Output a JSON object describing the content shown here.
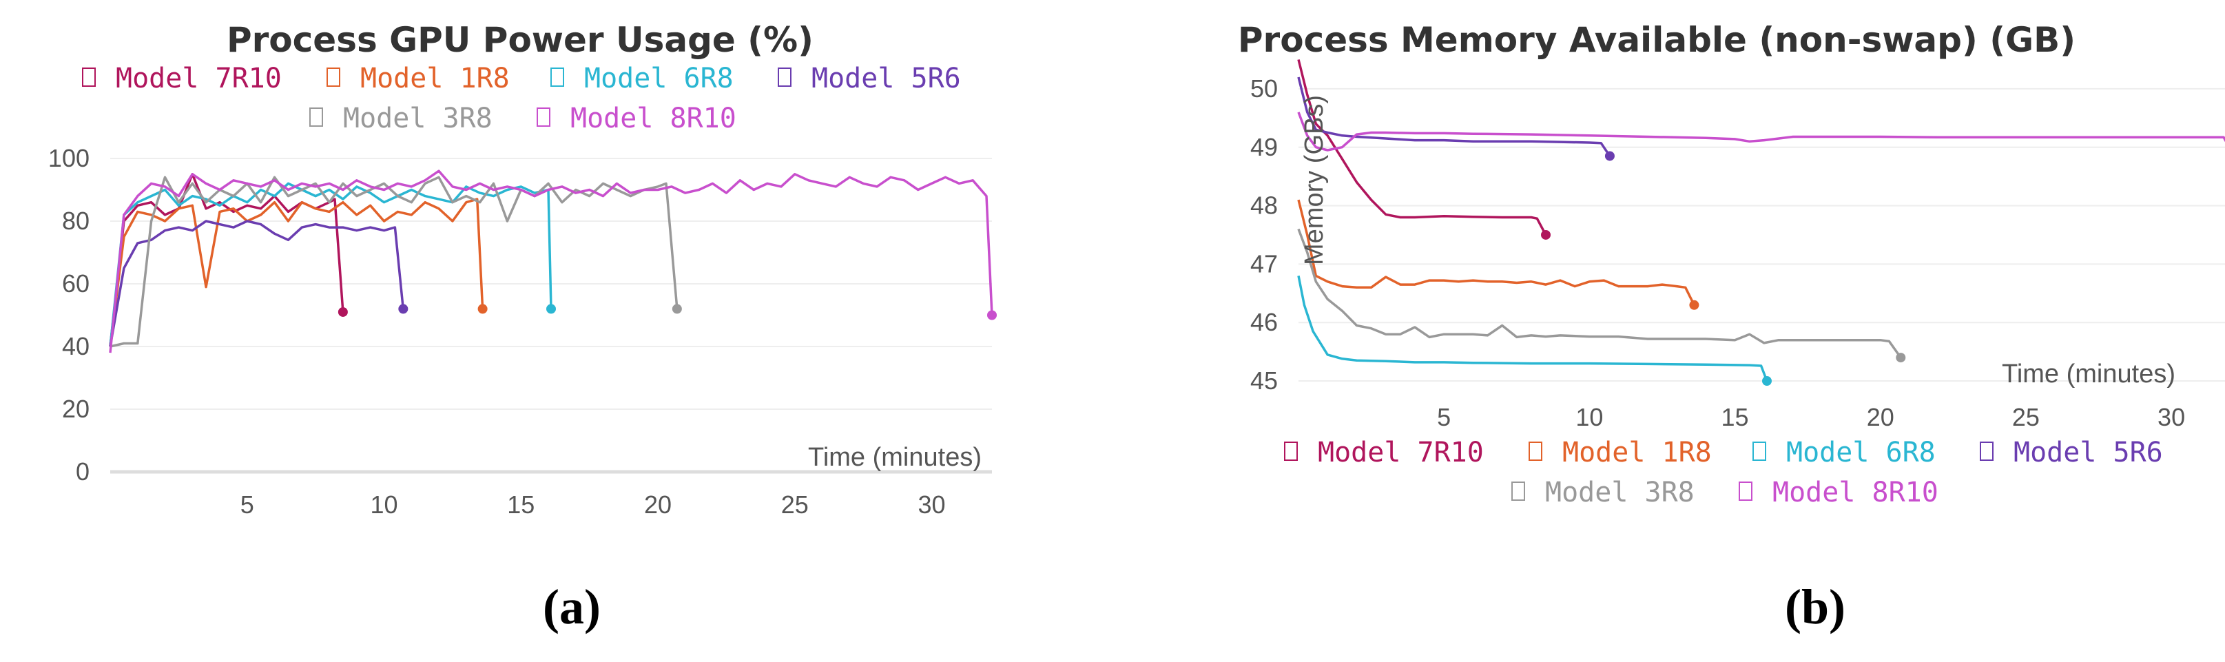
{
  "sublabels": [
    "(a)",
    "(b)"
  ],
  "chart_data": [
    {
      "type": "line",
      "title": "Process GPU Power Usage (%)",
      "xlabel": "Time (minutes)",
      "ylabel": "",
      "xlim": [
        0,
        32.2
      ],
      "ylim": [
        0,
        100
      ],
      "xticks": [
        5,
        10,
        15,
        20,
        25,
        30
      ],
      "yticks": [
        0,
        20,
        40,
        60,
        80,
        100
      ],
      "legend_position": "top",
      "series": [
        {
          "name": "Model 7R10",
          "color": "#b0155c",
          "x": [
            0,
            0.5,
            1,
            1.5,
            2,
            2.5,
            3,
            3.5,
            4,
            4.5,
            5,
            5.5,
            6,
            6.5,
            7,
            7.5,
            8,
            8.2,
            8.5
          ],
          "y": [
            40,
            80,
            85,
            86,
            82,
            84,
            95,
            84,
            86,
            83,
            85,
            84,
            88,
            83,
            86,
            84,
            86,
            87,
            51
          ]
        },
        {
          "name": "Model 1R8",
          "color": "#e2622a",
          "x": [
            0,
            0.5,
            1,
            1.5,
            2,
            2.5,
            3,
            3.5,
            4,
            4.5,
            5,
            5.5,
            6,
            6.5,
            7,
            7.5,
            8,
            8.5,
            9,
            9.5,
            10,
            10.5,
            11,
            11.5,
            12,
            12.5,
            13,
            13.4,
            13.6
          ],
          "y": [
            40,
            75,
            83,
            82,
            80,
            84,
            85,
            59,
            83,
            84,
            80,
            82,
            86,
            80,
            86,
            84,
            83,
            86,
            82,
            85,
            80,
            83,
            82,
            86,
            84,
            80,
            86,
            87,
            52
          ]
        },
        {
          "name": "Model 6R8",
          "color": "#2ab6d2",
          "x": [
            0,
            0.5,
            1,
            1.5,
            2,
            2.5,
            3,
            3.5,
            4,
            4.5,
            5,
            5.5,
            6,
            6.5,
            7,
            7.5,
            8,
            8.5,
            9,
            9.5,
            10,
            10.5,
            11,
            11.5,
            12,
            12.5,
            13,
            13.5,
            14,
            14.5,
            15,
            15.5,
            16,
            16.1
          ],
          "y": [
            40,
            82,
            86,
            88,
            90,
            85,
            88,
            87,
            85,
            88,
            86,
            90,
            88,
            92,
            90,
            88,
            90,
            87,
            91,
            89,
            86,
            88,
            90,
            88,
            87,
            86,
            91,
            89,
            88,
            90,
            91,
            89,
            90,
            52
          ]
        },
        {
          "name": "Model 5R6",
          "color": "#6a3db0",
          "x": [
            0,
            0.5,
            1,
            1.5,
            2,
            2.5,
            3,
            3.5,
            4,
            4.5,
            5,
            5.5,
            6,
            6.5,
            7,
            7.5,
            8,
            8.5,
            9,
            9.5,
            10,
            10.4,
            10.7
          ],
          "y": [
            40,
            65,
            73,
            74,
            77,
            78,
            77,
            80,
            79,
            78,
            80,
            79,
            76,
            74,
            78,
            79,
            78,
            78,
            77,
            78,
            77,
            78,
            52
          ]
        },
        {
          "name": "Model 3R8",
          "color": "#999999",
          "x": [
            0,
            0.5,
            1,
            1.5,
            2,
            2.5,
            3,
            3.5,
            4,
            4.5,
            5,
            5.5,
            6,
            6.5,
            7,
            7.5,
            8,
            8.5,
            9,
            9.5,
            10,
            10.5,
            11,
            11.5,
            12,
            12.5,
            13,
            13.5,
            14,
            14.5,
            15,
            15.5,
            16,
            16.5,
            17,
            17.5,
            18,
            18.5,
            19,
            19.5,
            20,
            20.3,
            20.7
          ],
          "y": [
            40,
            41,
            41,
            80,
            94,
            86,
            92,
            86,
            90,
            88,
            92,
            86,
            94,
            88,
            90,
            92,
            86,
            92,
            88,
            90,
            92,
            88,
            86,
            92,
            94,
            86,
            88,
            86,
            92,
            80,
            90,
            88,
            92,
            86,
            90,
            88,
            92,
            90,
            88,
            90,
            91,
            92,
            52
          ]
        },
        {
          "name": "Model 8R10",
          "color": "#c84fcd",
          "x": [
            0,
            0.5,
            1,
            1.5,
            2,
            2.5,
            3,
            3.5,
            4,
            4.5,
            5,
            5.5,
            6,
            6.5,
            7,
            7.5,
            8,
            8.5,
            9,
            9.5,
            10,
            10.5,
            11,
            11.5,
            12,
            12.5,
            13,
            13.5,
            14,
            14.5,
            15,
            15.5,
            16,
            16.5,
            17,
            17.5,
            18,
            18.5,
            19,
            19.5,
            20,
            20.5,
            21,
            21.5,
            22,
            22.5,
            23,
            23.5,
            24,
            24.5,
            25,
            25.5,
            26,
            26.5,
            27,
            27.5,
            28,
            28.5,
            29,
            29.5,
            30,
            30.5,
            31,
            31.5,
            32,
            32.2
          ],
          "y": [
            38,
            82,
            88,
            92,
            91,
            88,
            95,
            92,
            90,
            93,
            92,
            91,
            93,
            90,
            92,
            91,
            92,
            90,
            93,
            91,
            90,
            92,
            91,
            93,
            96,
            91,
            90,
            92,
            90,
            91,
            90,
            88,
            90,
            91,
            89,
            90,
            88,
            92,
            89,
            90,
            90,
            91,
            89,
            90,
            92,
            89,
            93,
            90,
            92,
            91,
            95,
            93,
            92,
            91,
            94,
            92,
            91,
            94,
            93,
            90,
            92,
            94,
            92,
            93,
            88,
            50
          ]
        }
      ]
    },
    {
      "type": "line",
      "title": "Process Memory Available (non-swap) (GB)",
      "xlabel": "Time (minutes)",
      "ylabel": "Memory (GBs)",
      "xlim": [
        0,
        32.2
      ],
      "ylim": [
        44.8,
        50.4
      ],
      "xticks": [
        5,
        10,
        15,
        20,
        25,
        30
      ],
      "yticks": [
        45,
        46,
        47,
        48,
        49,
        50
      ],
      "legend_position": "bottom",
      "series": [
        {
          "name": "Model 7R10",
          "color": "#b0155c",
          "x": [
            0,
            0.3,
            0.6,
            1,
            1.5,
            2,
            2.5,
            3,
            3.5,
            4,
            5,
            6,
            7,
            8,
            8.2,
            8.5
          ],
          "y": [
            50.5,
            49.9,
            49.4,
            49.2,
            48.8,
            48.4,
            48.1,
            47.85,
            47.8,
            47.8,
            47.82,
            47.81,
            47.8,
            47.8,
            47.78,
            47.5
          ]
        },
        {
          "name": "Model 1R8",
          "color": "#e2622a",
          "x": [
            0,
            0.3,
            0.6,
            1,
            1.5,
            2,
            2.5,
            3,
            3.5,
            4,
            4.5,
            5,
            5.5,
            6,
            6.5,
            7,
            7.5,
            8,
            8.5,
            9,
            9.5,
            10,
            10.5,
            11,
            11.5,
            12,
            12.5,
            13,
            13.3,
            13.6
          ],
          "y": [
            48.1,
            47.5,
            46.8,
            46.7,
            46.62,
            46.6,
            46.6,
            46.78,
            46.65,
            46.65,
            46.72,
            46.72,
            46.7,
            46.72,
            46.7,
            46.7,
            46.68,
            46.7,
            46.65,
            46.72,
            46.62,
            46.7,
            46.72,
            46.62,
            46.62,
            46.62,
            46.65,
            46.62,
            46.6,
            46.3
          ]
        },
        {
          "name": "Model 6R8",
          "color": "#2ab6d2",
          "x": [
            0,
            0.2,
            0.5,
            1,
            1.5,
            2,
            3,
            4,
            5,
            6,
            8,
            10,
            12,
            14,
            15.5,
            15.9,
            16.1
          ],
          "y": [
            46.8,
            46.3,
            45.85,
            45.45,
            45.38,
            45.35,
            45.34,
            45.32,
            45.32,
            45.31,
            45.3,
            45.3,
            45.29,
            45.28,
            45.27,
            45.26,
            45.0
          ]
        },
        {
          "name": "Model 5R6",
          "color": "#6a3db0",
          "x": [
            0,
            0.3,
            0.6,
            1,
            1.5,
            2,
            3,
            4,
            5,
            6,
            7,
            8,
            9,
            10,
            10.4,
            10.7
          ],
          "y": [
            50.2,
            49.6,
            49.3,
            49.25,
            49.2,
            49.18,
            49.15,
            49.12,
            49.12,
            49.1,
            49.1,
            49.1,
            49.09,
            49.08,
            49.07,
            48.85
          ]
        },
        {
          "name": "Model 3R8",
          "color": "#999999",
          "x": [
            0,
            0.3,
            0.6,
            1,
            1.5,
            2,
            2.5,
            3,
            3.5,
            4,
            4.5,
            5,
            5.5,
            6,
            6.5,
            7,
            7.5,
            8,
            8.5,
            9,
            10,
            11,
            12,
            13,
            14,
            15,
            15.5,
            16,
            16.5,
            17,
            18,
            19,
            20,
            20.3,
            20.7
          ],
          "y": [
            47.6,
            47.2,
            46.7,
            46.4,
            46.2,
            45.95,
            45.9,
            45.8,
            45.8,
            45.92,
            45.75,
            45.8,
            45.8,
            45.8,
            45.78,
            45.95,
            45.75,
            45.78,
            45.76,
            45.78,
            45.76,
            45.76,
            45.72,
            45.72,
            45.72,
            45.7,
            45.8,
            45.65,
            45.7,
            45.7,
            45.7,
            45.7,
            45.7,
            45.68,
            45.4
          ]
        },
        {
          "name": "Model 8R10",
          "color": "#c84fcd",
          "x": [
            0,
            0.3,
            0.6,
            1,
            1.5,
            2,
            2.5,
            3,
            4,
            5,
            6,
            8,
            10,
            12,
            14,
            15,
            15.5,
            16,
            17,
            18,
            20,
            22,
            24,
            26,
            28,
            30,
            31.5,
            31.8,
            32.1
          ],
          "y": [
            49.6,
            49.2,
            49.0,
            48.95,
            49.0,
            49.22,
            49.25,
            49.25,
            49.24,
            49.24,
            49.23,
            49.22,
            49.2,
            49.18,
            49.16,
            49.14,
            49.1,
            49.12,
            49.18,
            49.18,
            49.18,
            49.17,
            49.17,
            49.17,
            49.17,
            49.17,
            49.17,
            49.17,
            48.9
          ]
        }
      ]
    }
  ]
}
